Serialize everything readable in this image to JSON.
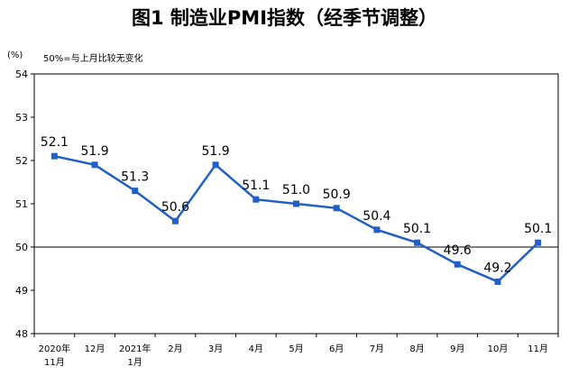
{
  "chart_data": {
    "type": "line",
    "title": "图1 制造业PMI指数（经季节调整）",
    "unit": "(%)",
    "note": "50%=与上月比较无变化",
    "categories": [
      [
        "2020年",
        "11月"
      ],
      [
        "12月"
      ],
      [
        "2021年",
        "1月"
      ],
      [
        "2月"
      ],
      [
        "3月"
      ],
      [
        "4月"
      ],
      [
        "5月"
      ],
      [
        "6月"
      ],
      [
        "7月"
      ],
      [
        "8月"
      ],
      [
        "9月"
      ],
      [
        "10月"
      ],
      [
        "11月"
      ]
    ],
    "values": [
      52.1,
      51.9,
      51.3,
      50.6,
      51.9,
      51.1,
      51.0,
      50.9,
      50.4,
      50.1,
      49.6,
      49.2,
      50.1
    ],
    "data_labels": [
      "52.1",
      "51.9",
      "51.3",
      "50.6",
      "51.9",
      "51.1",
      "51.0",
      "50.9",
      "50.4",
      "50.1",
      "49.6",
      "49.2",
      "50.1"
    ],
    "ylim": [
      48,
      54
    ],
    "yticks": [
      48,
      49,
      50,
      51,
      52,
      53,
      54
    ],
    "reference_line": 50,
    "series_color": "#1f5fc7",
    "grid": false
  }
}
